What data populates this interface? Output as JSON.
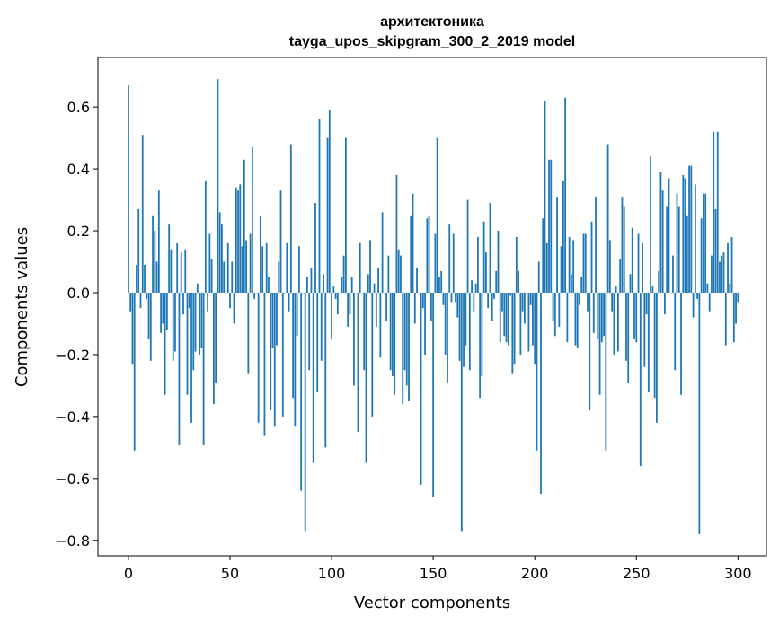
{
  "chart_data": {
    "type": "bar",
    "title_line1": "архитектоника",
    "title_line2": "tayga_upos_skipgram_300_2_2019 model",
    "xlabel": "Vector components",
    "ylabel": "Components values",
    "xlim": [
      -15,
      314
    ],
    "ylim": [
      -0.85,
      0.76
    ],
    "xticks": [
      0,
      50,
      100,
      150,
      200,
      250,
      300
    ],
    "yticks": [
      -0.8,
      -0.6,
      -0.4,
      -0.2,
      0.0,
      0.2,
      0.4,
      0.6
    ],
    "ytick_labels": [
      "−0.8",
      "−0.6",
      "−0.4",
      "−0.2",
      "0.0",
      "0.2",
      "0.4",
      "0.6"
    ],
    "bar_color": "#1f77b4",
    "grid": false,
    "values": [
      0.67,
      -0.06,
      -0.23,
      -0.51,
      0.09,
      0.27,
      -0.05,
      0.51,
      0.09,
      -0.02,
      -0.15,
      -0.22,
      0.25,
      0.2,
      0.1,
      0.33,
      -0.13,
      -0.1,
      -0.33,
      -0.12,
      0.22,
      0.14,
      -0.22,
      -0.19,
      0.16,
      -0.49,
      0.13,
      -0.07,
      0.14,
      -0.33,
      -0.05,
      -0.42,
      -0.25,
      -0.19,
      0.03,
      -0.2,
      -0.18,
      -0.49,
      0.36,
      -0.06,
      0.19,
      0.11,
      -0.36,
      -0.29,
      0.69,
      0.26,
      0.22,
      0.1,
      0.0,
      0.16,
      -0.05,
      0.1,
      -0.1,
      0.34,
      0.33,
      0.35,
      0.15,
      0.43,
      0.17,
      -0.26,
      0.19,
      0.47,
      -0.02,
      0.0,
      -0.42,
      0.25,
      0.15,
      -0.46,
      0.16,
      0.05,
      -0.38,
      -0.18,
      -0.43,
      -0.17,
      0.1,
      0.33,
      -0.4,
      0.0,
      0.16,
      -0.06,
      0.48,
      -0.34,
      -0.43,
      -0.14,
      0.15,
      -0.64,
      0.0,
      -0.77,
      0.05,
      -0.25,
      0.08,
      -0.55,
      0.29,
      -0.32,
      0.56,
      -0.22,
      0.06,
      -0.5,
      0.5,
      0.59,
      -0.15,
      0.02,
      -0.02,
      -0.07,
      0.0,
      0.05,
      0.12,
      0.5,
      -0.11,
      -0.07,
      0.05,
      -0.3,
      0.0,
      -0.45,
      0.16,
      0.0,
      -0.25,
      -0.55,
      0.06,
      0.17,
      -0.4,
      0.03,
      -0.11,
      0.08,
      -0.21,
      0.26,
      0.0,
      -0.09,
      0.12,
      -0.25,
      -0.27,
      -0.33,
      0.38,
      0.14,
      0.12,
      -0.36,
      -0.25,
      -0.3,
      -0.35,
      0.25,
      0.32,
      -0.1,
      0.08,
      0.0,
      -0.62,
      -0.05,
      -0.2,
      0.24,
      0.25,
      -0.09,
      -0.66,
      0.19,
      0.5,
      0.05,
      0.07,
      -0.04,
      -0.2,
      -0.29,
      0.22,
      -0.03,
      0.19,
      -0.03,
      -0.08,
      -0.22,
      -0.77,
      -0.24,
      -0.17,
      0.3,
      -0.25,
      0.04,
      -0.06,
      0.03,
      0.18,
      -0.34,
      -0.27,
      0.23,
      0.13,
      -0.05,
      0.29,
      -0.09,
      -0.02,
      0.07,
      0.2,
      -0.16,
      -0.06,
      -0.14,
      -0.16,
      -0.17,
      -0.01,
      -0.26,
      -0.23,
      0.18,
      0.07,
      -0.2,
      -0.06,
      -0.1,
      0.0,
      -0.19,
      -0.04,
      -0.17,
      -0.23,
      -0.51,
      0.1,
      -0.65,
      0.24,
      0.62,
      0.16,
      0.43,
      0.43,
      -0.09,
      -0.14,
      0.31,
      -0.11,
      0.15,
      0.36,
      0.63,
      -0.16,
      0.18,
      0.06,
      0.17,
      -0.17,
      -0.18,
      -0.04,
      0.05,
      0.19,
      0.19,
      -0.06,
      -0.38,
      0.23,
      -0.13,
      0.31,
      -0.15,
      -0.33,
      -0.16,
      -0.14,
      -0.51,
      0.48,
      0.17,
      -0.06,
      -0.2,
      0.02,
      -0.19,
      0.11,
      0.31,
      0.28,
      -0.22,
      -0.29,
      0.06,
      0.21,
      -0.15,
      -0.16,
      0.19,
      -0.56,
      0.16,
      -0.24,
      -0.07,
      -0.32,
      0.44,
      0.02,
      -0.34,
      -0.42,
      0.07,
      0.39,
      0.33,
      -0.07,
      0.28,
      0.37,
      0.0,
      0.12,
      -0.25,
      0.32,
      0.28,
      -0.33,
      0.38,
      0.37,
      0.25,
      0.41,
      0.41,
      -0.08,
      0.35,
      -0.02,
      -0.78,
      0.24,
      0.32,
      0.32,
      0.03,
      -0.06,
      0.12,
      0.52,
      0.27,
      0.52,
      0.1,
      0.12,
      0.13,
      -0.17,
      0.16,
      0.03,
      0.18,
      -0.16,
      -0.1,
      -0.03
    ]
  }
}
